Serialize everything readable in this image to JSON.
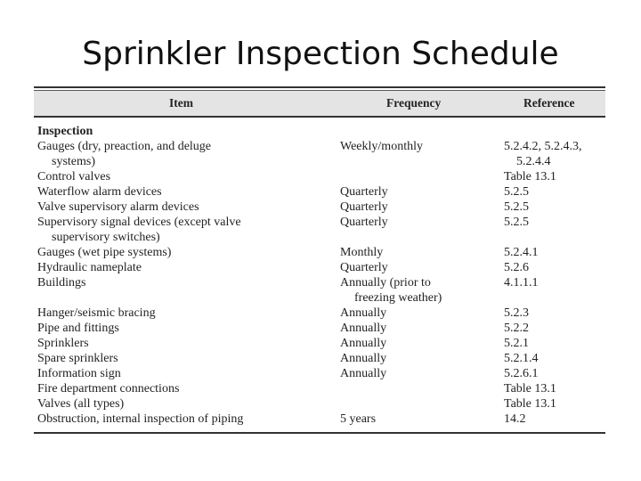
{
  "title": "Sprinkler Inspection Schedule",
  "table": {
    "headers": [
      "Item",
      "Frequency",
      "Reference"
    ],
    "section": "Inspection",
    "rows": [
      [
        [
          "Gauges (dry, preaction, and deluge",
          "systems)"
        ],
        "Weekly/monthly",
        [
          "5.2.4.2, 5.2.4.3,",
          "5.2.4.4"
        ]
      ],
      [
        "Control valves",
        "",
        "Table 13.1"
      ],
      [
        "Waterflow alarm devices",
        "Quarterly",
        "5.2.5"
      ],
      [
        "Valve supervisory alarm devices",
        "Quarterly",
        "5.2.5"
      ],
      [
        [
          "Supervisory signal devices (except valve",
          "supervisory switches)"
        ],
        "Quarterly",
        "5.2.5"
      ],
      [
        "Gauges (wet pipe systems)",
        "Monthly",
        "5.2.4.1"
      ],
      [
        "Hydraulic nameplate",
        "Quarterly",
        "5.2.6"
      ],
      [
        "Buildings",
        [
          "Annually (prior to",
          "freezing weather)"
        ],
        "4.1.1.1"
      ],
      [
        "Hanger/seismic bracing",
        "Annually",
        "5.2.3"
      ],
      [
        "Pipe and fittings",
        "Annually",
        "5.2.2"
      ],
      [
        "Sprinklers",
        "Annually",
        "5.2.1"
      ],
      [
        "Spare sprinklers",
        "Annually",
        "5.2.1.4"
      ],
      [
        "Information sign",
        "Annually",
        "5.2.6.1"
      ],
      [
        "Fire department connections",
        "",
        "Table 13.1"
      ],
      [
        "Valves (all types)",
        "",
        "Table 13.1"
      ],
      [
        "Obstruction, internal inspection of piping",
        "5 years",
        "14.2"
      ]
    ]
  }
}
